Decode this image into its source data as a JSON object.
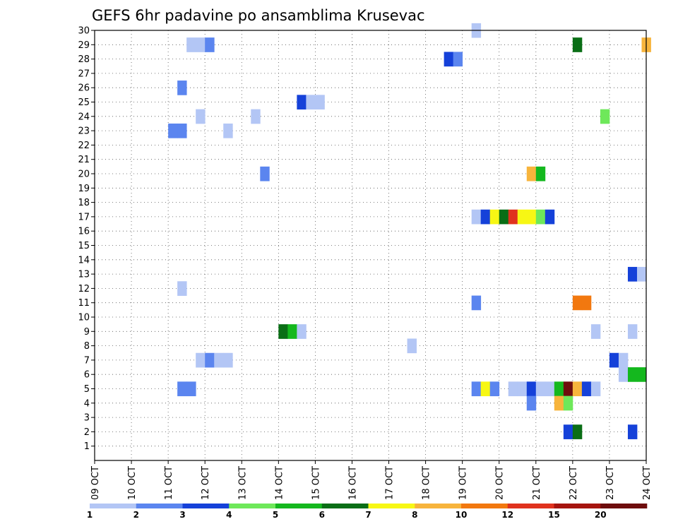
{
  "chart_data": {
    "type": "heatmap",
    "title": "GEFS 6hr padavine po ansamblima Krusevac",
    "xlabel": "",
    "ylabel": "",
    "x_tick_labels": [
      "09 OCT",
      "10 OCT",
      "11 OCT",
      "12 OCT",
      "13 OCT",
      "14 OCT",
      "15 OCT",
      "16 OCT",
      "17 OCT",
      "18 OCT",
      "19 OCT",
      "20 OCT",
      "21 OCT",
      "22 OCT",
      "23 OCT",
      "24 OCT"
    ],
    "y_tick_labels": [
      "1",
      "2",
      "3",
      "4",
      "5",
      "6",
      "7",
      "8",
      "9",
      "10",
      "11",
      "12",
      "13",
      "14",
      "15",
      "16",
      "17",
      "18",
      "19",
      "20",
      "21",
      "22",
      "23",
      "24",
      "25",
      "26",
      "27",
      "28",
      "29",
      "30"
    ],
    "x_range_days": [
      9,
      24
    ],
    "y_range": [
      0,
      30
    ],
    "grid": true,
    "legend": {
      "placement": "bottom",
      "labels": [
        "1",
        "2",
        "3",
        "4",
        "5",
        "6",
        "7",
        "8",
        "10",
        "12",
        "15",
        "20"
      ],
      "colors": [
        "#b3c6f5",
        "#5b85ef",
        "#1541d9",
        "#6ee85a",
        "#14b81e",
        "#0a6e16",
        "#f7f714",
        "#f7b43c",
        "#f2780f",
        "#e0321e",
        "#a6140f",
        "#6e0d0d"
      ]
    },
    "colors": [
      "#b3c6f5",
      "#5b85ef",
      "#1541d9",
      "#6ee85a",
      "#14b81e",
      "#0a6e16",
      "#f7f714",
      "#f7b43c",
      "#f2780f",
      "#e0321e",
      "#a6140f",
      "#6e0d0d"
    ],
    "cells": [
      {
        "member": 30,
        "day": 19.375,
        "cls": 0
      },
      {
        "member": 29,
        "day": 11.625,
        "cls": 0
      },
      {
        "member": 29,
        "day": 11.875,
        "cls": 0
      },
      {
        "member": 29,
        "day": 12.125,
        "cls": 1
      },
      {
        "member": 29,
        "day": 22.125,
        "cls": 5
      },
      {
        "member": 29,
        "day": 24.0,
        "cls": 7
      },
      {
        "member": 28,
        "day": 18.625,
        "cls": 2
      },
      {
        "member": 28,
        "day": 18.875,
        "cls": 1
      },
      {
        "member": 26,
        "day": 11.375,
        "cls": 1
      },
      {
        "member": 25,
        "day": 14.625,
        "cls": 2
      },
      {
        "member": 25,
        "day": 14.875,
        "cls": 0
      },
      {
        "member": 25,
        "day": 15.125,
        "cls": 0
      },
      {
        "member": 24,
        "day": 11.875,
        "cls": 0
      },
      {
        "member": 24,
        "day": 13.375,
        "cls": 0
      },
      {
        "member": 24,
        "day": 22.875,
        "cls": 3
      },
      {
        "member": 23,
        "day": 11.125,
        "cls": 1
      },
      {
        "member": 23,
        "day": 11.375,
        "cls": 1
      },
      {
        "member": 23,
        "day": 12.625,
        "cls": 0
      },
      {
        "member": 20,
        "day": 13.625,
        "cls": 1
      },
      {
        "member": 20,
        "day": 20.875,
        "cls": 7
      },
      {
        "member": 20,
        "day": 21.125,
        "cls": 4
      },
      {
        "member": 17,
        "day": 19.375,
        "cls": 0
      },
      {
        "member": 17,
        "day": 19.625,
        "cls": 2
      },
      {
        "member": 17,
        "day": 19.875,
        "cls": 6
      },
      {
        "member": 17,
        "day": 20.125,
        "cls": 5
      },
      {
        "member": 17,
        "day": 20.375,
        "cls": 9
      },
      {
        "member": 17,
        "day": 20.625,
        "cls": 6
      },
      {
        "member": 17,
        "day": 20.875,
        "cls": 6
      },
      {
        "member": 17,
        "day": 21.125,
        "cls": 3
      },
      {
        "member": 17,
        "day": 21.375,
        "cls": 2
      },
      {
        "member": 13,
        "day": 23.625,
        "cls": 2
      },
      {
        "member": 13,
        "day": 23.875,
        "cls": 0
      },
      {
        "member": 12,
        "day": 11.375,
        "cls": 0
      },
      {
        "member": 11,
        "day": 19.375,
        "cls": 1
      },
      {
        "member": 11,
        "day": 22.125,
        "cls": 8
      },
      {
        "member": 11,
        "day": 22.375,
        "cls": 8
      },
      {
        "member": 9,
        "day": 14.125,
        "cls": 5
      },
      {
        "member": 9,
        "day": 14.375,
        "cls": 4
      },
      {
        "member": 9,
        "day": 14.625,
        "cls": 0
      },
      {
        "member": 9,
        "day": 22.625,
        "cls": 0
      },
      {
        "member": 9,
        "day": 23.625,
        "cls": 0
      },
      {
        "member": 8,
        "day": 17.625,
        "cls": 0
      },
      {
        "member": 7,
        "day": 11.875,
        "cls": 0
      },
      {
        "member": 7,
        "day": 12.125,
        "cls": 1
      },
      {
        "member": 7,
        "day": 12.375,
        "cls": 0
      },
      {
        "member": 7,
        "day": 12.625,
        "cls": 0
      },
      {
        "member": 7,
        "day": 23.125,
        "cls": 2
      },
      {
        "member": 7,
        "day": 23.375,
        "cls": 0
      },
      {
        "member": 6,
        "day": 23.375,
        "cls": 0
      },
      {
        "member": 6,
        "day": 23.625,
        "cls": 4
      },
      {
        "member": 6,
        "day": 23.875,
        "cls": 4
      },
      {
        "member": 5,
        "day": 11.375,
        "cls": 1
      },
      {
        "member": 5,
        "day": 11.625,
        "cls": 1
      },
      {
        "member": 5,
        "day": 19.375,
        "cls": 1
      },
      {
        "member": 5,
        "day": 19.625,
        "cls": 6
      },
      {
        "member": 5,
        "day": 19.875,
        "cls": 1
      },
      {
        "member": 5,
        "day": 20.375,
        "cls": 0
      },
      {
        "member": 5,
        "day": 20.625,
        "cls": 0
      },
      {
        "member": 5,
        "day": 20.875,
        "cls": 2
      },
      {
        "member": 5,
        "day": 21.125,
        "cls": 0
      },
      {
        "member": 5,
        "day": 21.375,
        "cls": 0
      },
      {
        "member": 5,
        "day": 21.625,
        "cls": 4
      },
      {
        "member": 5,
        "day": 21.875,
        "cls": 11
      },
      {
        "member": 5,
        "day": 22.125,
        "cls": 7
      },
      {
        "member": 5,
        "day": 22.375,
        "cls": 2
      },
      {
        "member": 5,
        "day": 22.625,
        "cls": 0
      },
      {
        "member": 4,
        "day": 20.875,
        "cls": 1
      },
      {
        "member": 4,
        "day": 21.625,
        "cls": 7
      },
      {
        "member": 4,
        "day": 21.875,
        "cls": 3
      },
      {
        "member": 2,
        "day": 21.875,
        "cls": 2
      },
      {
        "member": 2,
        "day": 22.125,
        "cls": 5
      },
      {
        "member": 2,
        "day": 23.625,
        "cls": 2
      }
    ]
  }
}
